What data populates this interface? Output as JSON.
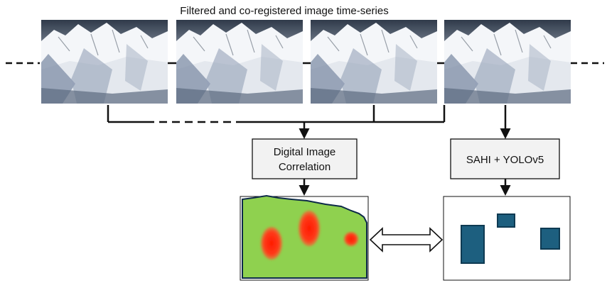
{
  "title": "Filtered and co-registered image time-series",
  "boxes": {
    "dic": {
      "line1": "Digital Image",
      "line2": "Correlation"
    },
    "yolo": {
      "label": "SAHI + YOLOv5"
    }
  },
  "images": [
    {
      "name": "timeseries-image-1"
    },
    {
      "name": "timeseries-image-2"
    },
    {
      "name": "timeseries-image-3"
    },
    {
      "name": "timeseries-image-4"
    }
  ],
  "colors": {
    "box_fill": "#f2f2f2",
    "dic_map_fill": "#8fd14f",
    "hotspot": "#ff2a10",
    "detection_fill": "#1d5f7f",
    "detection_stroke": "#0e3a52"
  }
}
